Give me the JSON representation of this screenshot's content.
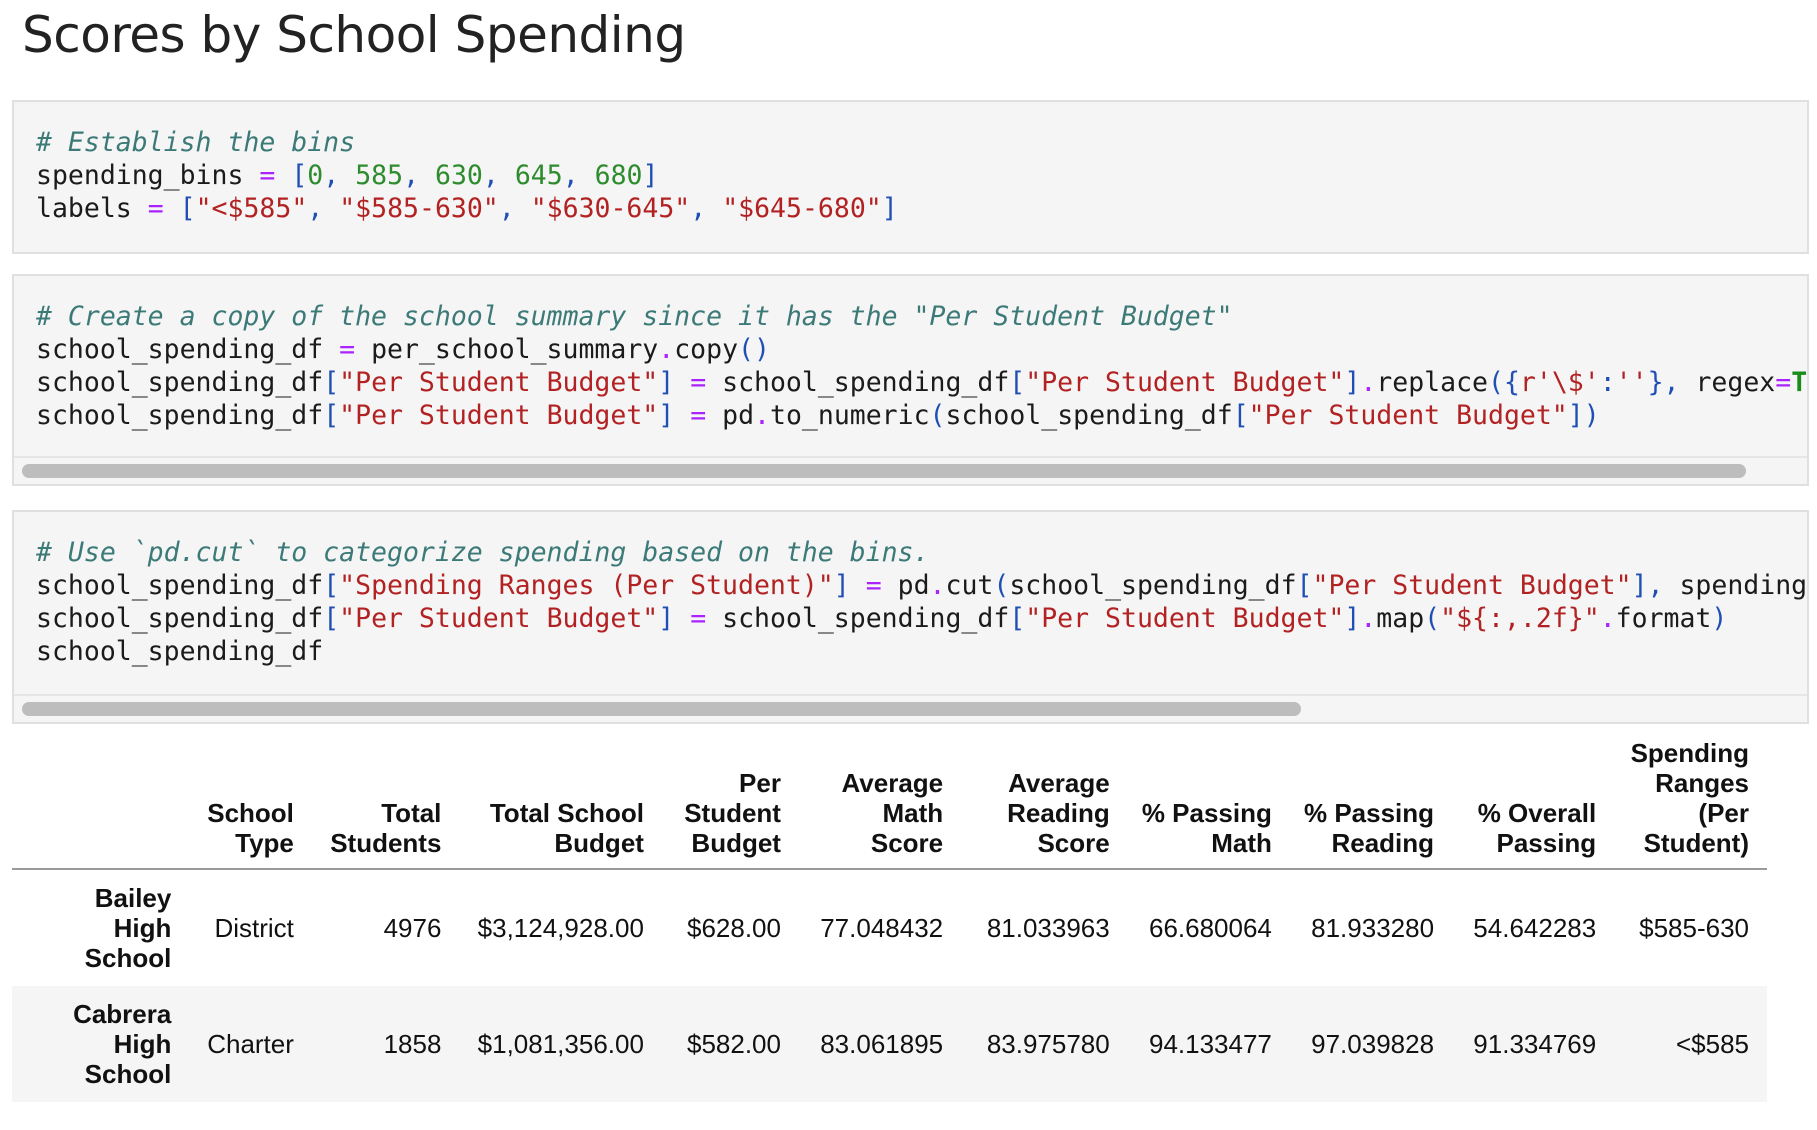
{
  "heading": "Scores by School Spending",
  "cells": [
    {
      "lines": [
        [
          [
            "c-com",
            "# Establish the bins"
          ]
        ],
        [
          [
            "",
            "spending_bins "
          ],
          [
            "c-op",
            "="
          ],
          [
            "",
            " "
          ],
          [
            "c-pun",
            "["
          ],
          [
            "c-num",
            "0"
          ],
          [
            "c-pun",
            ","
          ],
          [
            "",
            " "
          ],
          [
            "c-num",
            "585"
          ],
          [
            "c-pun",
            ","
          ],
          [
            "",
            " "
          ],
          [
            "c-num",
            "630"
          ],
          [
            "c-pun",
            ","
          ],
          [
            "",
            " "
          ],
          [
            "c-num",
            "645"
          ],
          [
            "c-pun",
            ","
          ],
          [
            "",
            " "
          ],
          [
            "c-num",
            "680"
          ],
          [
            "c-pun",
            "]"
          ]
        ],
        [
          [
            "",
            "labels "
          ],
          [
            "c-op",
            "="
          ],
          [
            "",
            " "
          ],
          [
            "c-pun",
            "["
          ],
          [
            "c-str",
            "\"<$585\""
          ],
          [
            "c-pun",
            ","
          ],
          [
            "",
            " "
          ],
          [
            "c-str",
            "\"$585-630\""
          ],
          [
            "c-pun",
            ","
          ],
          [
            "",
            " "
          ],
          [
            "c-str",
            "\"$630-645\""
          ],
          [
            "c-pun",
            ","
          ],
          [
            "",
            " "
          ],
          [
            "c-str",
            "\"$645-680\""
          ],
          [
            "c-pun",
            "]"
          ]
        ]
      ],
      "scroll_thumb_fraction": null
    },
    {
      "lines": [
        [
          [
            "c-com",
            "# Create a copy of the school summary since it has the \"Per Student Budget\""
          ]
        ],
        [
          [
            "",
            "school_spending_df "
          ],
          [
            "c-op",
            "="
          ],
          [
            "",
            " per_school_summary"
          ],
          [
            "c-op",
            "."
          ],
          [
            "",
            "copy"
          ],
          [
            "c-pun",
            "()"
          ]
        ],
        [
          [
            "",
            "school_spending_df"
          ],
          [
            "c-pun",
            "["
          ],
          [
            "c-str",
            "\"Per Student Budget\""
          ],
          [
            "c-pun",
            "]"
          ],
          [
            "",
            " "
          ],
          [
            "c-op",
            "="
          ],
          [
            "",
            " school_spending_df"
          ],
          [
            "c-pun",
            "["
          ],
          [
            "c-str",
            "\"Per Student Budget\""
          ],
          [
            "c-pun",
            "]"
          ],
          [
            "c-op",
            "."
          ],
          [
            "",
            "replace"
          ],
          [
            "c-pun",
            "({"
          ],
          [
            "c-str",
            "r'\\$'"
          ],
          [
            "c-pun",
            ":"
          ],
          [
            "c-str",
            "''"
          ],
          [
            "c-pun",
            "},"
          ],
          [
            "",
            " regex"
          ],
          [
            "c-op",
            "="
          ],
          [
            "c-kw",
            "Tru"
          ]
        ],
        [
          [
            "",
            "school_spending_df"
          ],
          [
            "c-pun",
            "["
          ],
          [
            "c-str",
            "\"Per Student Budget\""
          ],
          [
            "c-pun",
            "]"
          ],
          [
            "",
            " "
          ],
          [
            "c-op",
            "="
          ],
          [
            "",
            " pd"
          ],
          [
            "c-op",
            "."
          ],
          [
            "",
            "to_numeric"
          ],
          [
            "c-pun",
            "("
          ],
          [
            "",
            "school_spending_df"
          ],
          [
            "c-pun",
            "["
          ],
          [
            "c-str",
            "\"Per Student Budget\""
          ],
          [
            "c-pun",
            "])"
          ]
        ]
      ],
      "scroll_thumb_fraction": 0.97
    },
    {
      "lines": [
        [
          [
            "c-com",
            "# Use `pd.cut` to categorize spending based on the bins."
          ]
        ],
        [
          [
            "",
            "school_spending_df"
          ],
          [
            "c-pun",
            "["
          ],
          [
            "c-str",
            "\"Spending Ranges (Per Student)\""
          ],
          [
            "c-pun",
            "]"
          ],
          [
            "",
            " "
          ],
          [
            "c-op",
            "="
          ],
          [
            "",
            " pd"
          ],
          [
            "c-op",
            "."
          ],
          [
            "",
            "cut"
          ],
          [
            "c-pun",
            "("
          ],
          [
            "",
            "school_spending_df"
          ],
          [
            "c-pun",
            "["
          ],
          [
            "c-str",
            "\"Per Student Budget\""
          ],
          [
            "c-pun",
            "],"
          ],
          [
            "",
            " spending_b"
          ]
        ],
        [
          [
            "",
            "school_spending_df"
          ],
          [
            "c-pun",
            "["
          ],
          [
            "c-str",
            "\"Per Student Budget\""
          ],
          [
            "c-pun",
            "]"
          ],
          [
            "",
            " "
          ],
          [
            "c-op",
            "="
          ],
          [
            "",
            " school_spending_df"
          ],
          [
            "c-pun",
            "["
          ],
          [
            "c-str",
            "\"Per Student Budget\""
          ],
          [
            "c-pun",
            "]"
          ],
          [
            "c-op",
            "."
          ],
          [
            "",
            "map"
          ],
          [
            "c-pun",
            "("
          ],
          [
            "c-str",
            "\"${:,.2f}\""
          ],
          [
            "c-op",
            "."
          ],
          [
            "",
            "format"
          ],
          [
            "c-pun",
            ")"
          ]
        ],
        [
          [
            "",
            "school_spending_df"
          ]
        ]
      ],
      "scroll_thumb_fraction": 0.72
    }
  ],
  "table": {
    "columns": [
      [
        "School",
        "Type"
      ],
      [
        "Total",
        "Students"
      ],
      [
        "Total School",
        "Budget"
      ],
      [
        "Per",
        "Student",
        "Budget"
      ],
      [
        "Average",
        "Math",
        "Score"
      ],
      [
        "Average",
        "Reading",
        "Score"
      ],
      [
        "% Passing",
        "Math"
      ],
      [
        "% Passing",
        "Reading"
      ],
      [
        "% Overall",
        "Passing"
      ],
      [
        "Spending",
        "Ranges",
        "(Per",
        "Student)"
      ]
    ],
    "rows": [
      {
        "index": [
          "Bailey",
          "High",
          "School"
        ],
        "values": [
          "District",
          "4976",
          "$3,124,928.00",
          "$628.00",
          "77.048432",
          "81.033963",
          "66.680064",
          "81.933280",
          "54.642283",
          "$585-630"
        ]
      },
      {
        "index": [
          "Cabrera",
          "High",
          "School"
        ],
        "values": [
          "Charter",
          "1858",
          "$1,081,356.00",
          "$582.00",
          "83.061895",
          "83.975780",
          "94.133477",
          "97.039828",
          "91.334769",
          "<$585"
        ]
      }
    ]
  }
}
